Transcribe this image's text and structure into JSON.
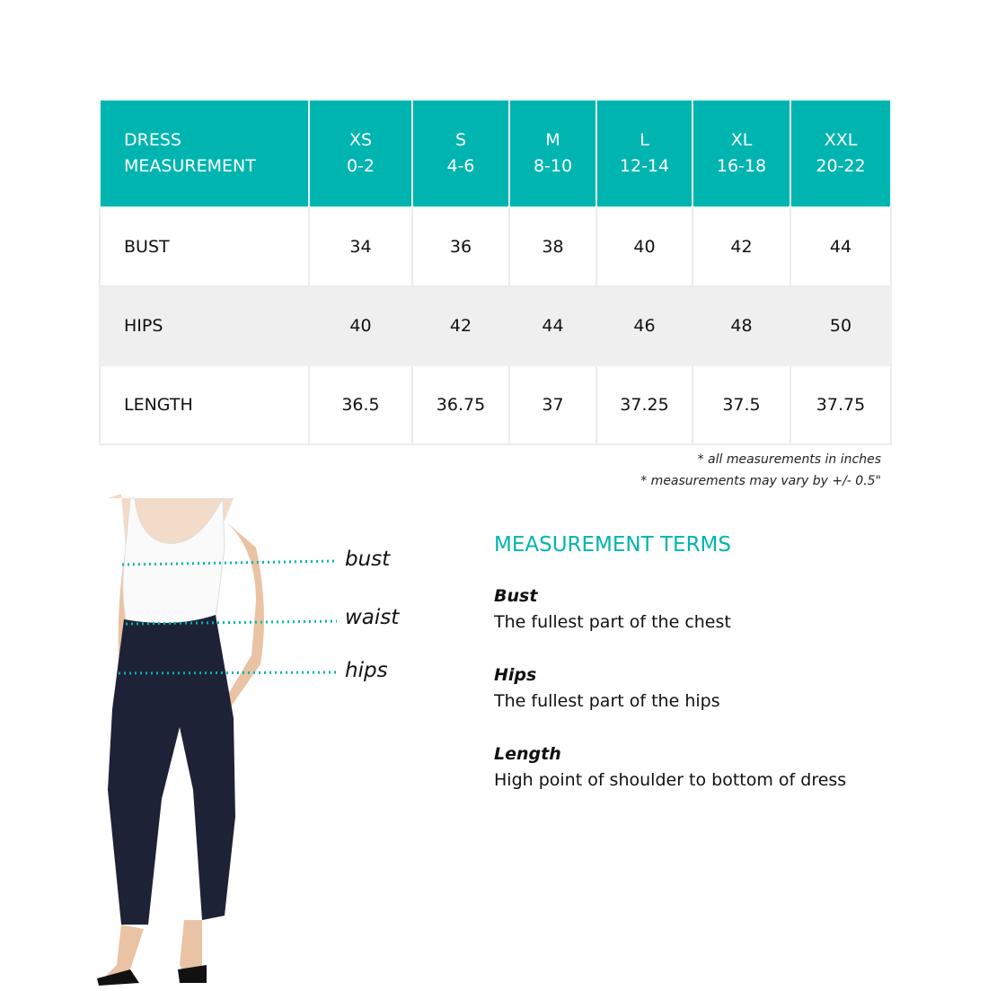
{
  "table": {
    "header": {
      "first": [
        "DRESS",
        "MEASUREMENT"
      ],
      "sizes": [
        {
          "size": "XS",
          "range": "0-2"
        },
        {
          "size": "S",
          "range": "4-6"
        },
        {
          "size": "M",
          "range": "8-10"
        },
        {
          "size": "L",
          "range": "12-14"
        },
        {
          "size": "XL",
          "range": "16-18"
        },
        {
          "size": "XXL",
          "range": "20-22"
        }
      ]
    },
    "rows": [
      {
        "label": "BUST",
        "values": [
          "34",
          "36",
          "38",
          "40",
          "42",
          "44"
        ]
      },
      {
        "label": "HIPS",
        "values": [
          "40",
          "42",
          "44",
          "46",
          "48",
          "50"
        ]
      },
      {
        "label": "LENGTH",
        "values": [
          "36.5",
          "36.75",
          "37",
          "37.25",
          "37.5",
          "37.75"
        ]
      }
    ]
  },
  "notes": [
    "* all measurements in inches",
    "* measurements may vary by +/- 0.5\""
  ],
  "figure": {
    "labels": {
      "bust": "bust",
      "waist": "waist",
      "hips": "hips"
    }
  },
  "terms": {
    "title": "MEASUREMENT TERMS",
    "items": [
      {
        "term": "Bust",
        "desc": "The fullest part of the chest"
      },
      {
        "term": "Hips",
        "desc": "The fullest part of the hips"
      },
      {
        "term": "Length",
        "desc": "High point of shoulder to bottom of dress"
      }
    ]
  },
  "colors": {
    "accent": "#00b5b0",
    "alt_row": "#efefef"
  }
}
